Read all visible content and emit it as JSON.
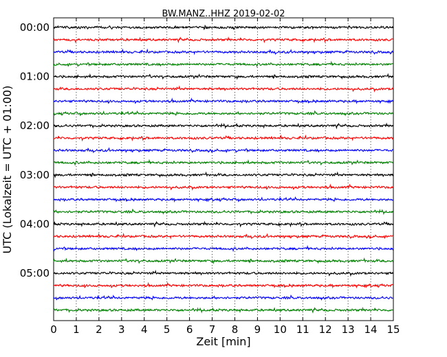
{
  "chart_data": {
    "type": "line",
    "title": "BW.MANZ..HHZ 2019-02-02",
    "xlabel": "Zeit  [min]",
    "ylabel": "UTC (Lokalzeit = UTC + 01:00)",
    "xlim": [
      0,
      15
    ],
    "x_ticks": [
      "0",
      "1",
      "2",
      "3",
      "4",
      "5",
      "6",
      "7",
      "8",
      "9",
      "10",
      "11",
      "12",
      "13",
      "14",
      "15"
    ],
    "y_tick_labels": [
      "00:00",
      "01:00",
      "02:00",
      "03:00",
      "04:00",
      "05:00"
    ],
    "trace_count": 24,
    "minutes_per_trace": 15,
    "trace_colors": [
      "#000000",
      "#ff0000",
      "#0000ff",
      "#008000"
    ],
    "vertical_grid": "dotted",
    "horizontal_grid": false,
    "legend": "none"
  }
}
